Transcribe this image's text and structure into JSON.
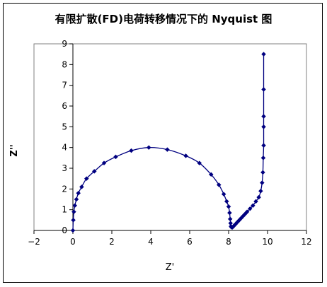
{
  "chart_data": {
    "type": "scatter",
    "title": "有限扩散(FD)电荷转移情况下的 Nyquist 图",
    "xlabel": "Z'",
    "ylabel": "Z''",
    "xlim": [
      -2,
      12
    ],
    "ylim": [
      0,
      9
    ],
    "x_ticks": [
      -2,
      0,
      2,
      4,
      6,
      8,
      10,
      12
    ],
    "y_ticks": [
      0,
      1,
      2,
      3,
      4,
      5,
      6,
      7,
      8,
      9
    ],
    "grid": false,
    "legend": "none",
    "series": [
      {
        "marker": "diamond",
        "line": "smooth",
        "color": "#000080",
        "x": [
          0.0,
          0.02,
          0.05,
          0.1,
          0.18,
          0.28,
          0.45,
          0.7,
          1.1,
          1.6,
          2.2,
          3.0,
          3.9,
          4.85,
          5.8,
          6.5,
          7.1,
          7.5,
          7.75,
          7.9,
          8.0,
          8.05,
          8.08,
          8.1,
          8.12,
          8.15,
          8.2,
          8.25,
          8.3,
          8.35,
          8.45,
          8.55,
          8.65,
          8.75,
          8.85,
          8.95,
          9.1,
          9.25,
          9.4,
          9.55,
          9.65,
          9.72,
          9.76,
          9.78,
          9.8,
          9.8,
          9.8,
          9.8,
          9.8
        ],
        "y": [
          0.0,
          0.5,
          0.9,
          1.2,
          1.5,
          1.8,
          2.1,
          2.5,
          2.85,
          3.25,
          3.55,
          3.85,
          4.0,
          3.9,
          3.6,
          3.25,
          2.7,
          2.2,
          1.75,
          1.4,
          1.15,
          0.85,
          0.55,
          0.35,
          0.2,
          0.15,
          0.15,
          0.2,
          0.25,
          0.3,
          0.4,
          0.5,
          0.6,
          0.7,
          0.8,
          0.9,
          1.05,
          1.2,
          1.4,
          1.6,
          1.9,
          2.3,
          2.8,
          3.5,
          4.1,
          5.0,
          5.5,
          6.8,
          8.5
        ]
      }
    ]
  },
  "colors": {
    "series": "#000080",
    "axis": "#000000",
    "frame": "#000000"
  }
}
